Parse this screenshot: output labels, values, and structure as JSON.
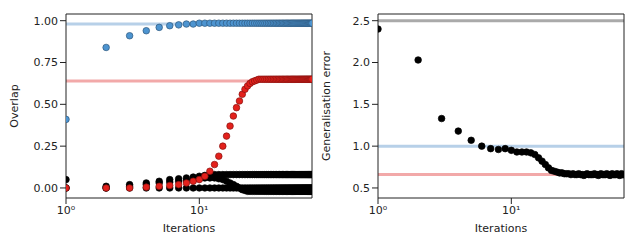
{
  "chart_data": [
    {
      "type": "scatter",
      "x_label": "Iterations",
      "y_label": "Overlap",
      "log": "x",
      "x": [
        1,
        2,
        3,
        4,
        5,
        6,
        7,
        8,
        9,
        10,
        11,
        12,
        13,
        14,
        15,
        16,
        17,
        18,
        19,
        20,
        21,
        22,
        23,
        24,
        25,
        26,
        27,
        28,
        29,
        30,
        31,
        32,
        33,
        34,
        35,
        36,
        37,
        38,
        39,
        40,
        41,
        42,
        43,
        44,
        45,
        46,
        47,
        48,
        49,
        50,
        51,
        52,
        53,
        54,
        55,
        56,
        57,
        58,
        59,
        60,
        61,
        62,
        63,
        64,
        65,
        66,
        67,
        68,
        69,
        70
      ],
      "xlim": [
        1,
        70
      ],
      "xticks": [
        {
          "value": 1,
          "label": "10⁰"
        },
        {
          "value": 10,
          "label": "10¹"
        }
      ],
      "ylim": [
        -0.06,
        1.04
      ],
      "yticks": [
        {
          "value": 0,
          "label": "0.00"
        },
        {
          "value": 0.25,
          "label": "0.25"
        },
        {
          "value": 0.5,
          "label": "0.50"
        },
        {
          "value": 0.75,
          "label": "0.75"
        },
        {
          "value": 1,
          "label": "1.00"
        }
      ],
      "reference_lines": [
        {
          "y": 0.98,
          "color": "#b7d0e8"
        },
        {
          "y": 0.64,
          "color": "#f2a9a9"
        }
      ],
      "series": [
        {
          "color": "#4d94d0",
          "marker": "circle",
          "values": [
            0.41,
            0.84,
            0.91,
            0.94,
            0.96,
            0.97,
            0.975,
            0.98,
            0.98,
            0.985,
            0.985,
            0.985,
            0.985,
            0.985,
            0.985,
            0.985,
            0.985,
            0.985,
            0.985,
            0.985,
            0.985,
            0.985,
            0.985,
            0.985,
            0.985,
            0.985,
            0.985,
            0.985,
            0.985,
            0.985,
            0.985,
            0.985,
            0.985,
            0.985,
            0.985,
            0.985,
            0.985,
            0.985,
            0.985,
            0.985,
            0.985,
            0.985,
            0.985,
            0.985,
            0.985,
            0.985,
            0.985,
            0.985,
            0.985,
            0.985,
            0.985,
            0.985,
            0.985,
            0.985,
            0.985,
            0.985,
            0.985,
            0.985,
            0.985,
            0.985,
            0.985,
            0.985,
            0.985,
            0.985,
            0.985,
            0.985,
            0.985,
            0.985,
            0.985,
            0.985
          ]
        },
        {
          "color": "#000000",
          "marker": "circle",
          "values": [
            0,
            0,
            0,
            0,
            0,
            0,
            0,
            0,
            0,
            0,
            0,
            0,
            0,
            0,
            0,
            0,
            0,
            0,
            0,
            0,
            0,
            0,
            0,
            0,
            0,
            0,
            0,
            0,
            0,
            0,
            0,
            0,
            0,
            0,
            0,
            0,
            0,
            0,
            0,
            0,
            0,
            0,
            0,
            0,
            0,
            0,
            0,
            0,
            0,
            0,
            0,
            0,
            0,
            0,
            0,
            0,
            0,
            0,
            0,
            0,
            0,
            0,
            0,
            0,
            0,
            0,
            0,
            0,
            0,
            0
          ]
        },
        {
          "color": "#000000",
          "marker": "circle",
          "values": [
            0.05,
            0.01,
            0.02,
            0.03,
            0.04,
            0.05,
            0.055,
            0.06,
            0.065,
            0.07,
            0.075,
            0.08,
            0.08,
            0.08,
            0.08,
            0.08,
            0.08,
            0.08,
            0.08,
            0.08,
            0.08,
            0.08,
            0.08,
            0.08,
            0.08,
            0.08,
            0.08,
            0.08,
            0.08,
            0.08,
            0.08,
            0.08,
            0.08,
            0.08,
            0.08,
            0.08,
            0.08,
            0.08,
            0.08,
            0.08,
            0.08,
            0.08,
            0.08,
            0.08,
            0.08,
            0.08,
            0.08,
            0.08,
            0.08,
            0.08,
            0.08,
            0.08,
            0.08,
            0.08,
            0.08,
            0.08,
            0.08,
            0.08,
            0.08,
            0.08,
            0.08,
            0.08,
            0.08,
            0.08,
            0.08,
            0.08,
            0.08,
            0.08,
            0.08,
            0.08
          ]
        },
        {
          "color": "#000000",
          "marker": "circle",
          "values": [
            0,
            0,
            0.01,
            0.02,
            0.03,
            0.035,
            0.04,
            0.045,
            0.05,
            0.055,
            0.06,
            0.06,
            0.06,
            0.055,
            0.05,
            0.04,
            0.03,
            0.02,
            0.01,
            0,
            -0.01,
            -0.015,
            -0.02,
            -0.02,
            -0.02,
            -0.02,
            -0.02,
            -0.02,
            -0.02,
            -0.02,
            -0.02,
            -0.02,
            -0.02,
            -0.02,
            -0.02,
            -0.02,
            -0.02,
            -0.02,
            -0.02,
            -0.02,
            -0.02,
            -0.02,
            -0.02,
            -0.02,
            -0.02,
            -0.02,
            -0.02,
            -0.02,
            -0.02,
            -0.02,
            -0.02,
            -0.02,
            -0.02,
            -0.02,
            -0.02,
            -0.02,
            -0.02,
            -0.02,
            -0.02,
            -0.02,
            -0.02,
            -0.02,
            -0.02,
            -0.02,
            -0.02,
            -0.02,
            -0.02,
            -0.02,
            -0.02,
            -0.02
          ]
        },
        {
          "color": "#e3211c",
          "marker": "circle",
          "values": [
            0,
            0,
            0,
            0.005,
            0.01,
            0.015,
            0.02,
            0.03,
            0.04,
            0.05,
            0.07,
            0.1,
            0.14,
            0.19,
            0.25,
            0.31,
            0.37,
            0.43,
            0.48,
            0.52,
            0.56,
            0.59,
            0.61,
            0.625,
            0.635,
            0.64,
            0.645,
            0.65,
            0.65,
            0.65,
            0.65,
            0.65,
            0.65,
            0.65,
            0.65,
            0.65,
            0.65,
            0.65,
            0.65,
            0.65,
            0.65,
            0.65,
            0.65,
            0.65,
            0.65,
            0.65,
            0.65,
            0.65,
            0.65,
            0.65,
            0.65,
            0.65,
            0.65,
            0.65,
            0.65,
            0.65,
            0.65,
            0.65,
            0.65,
            0.65,
            0.65,
            0.65,
            0.65,
            0.65,
            0.65,
            0.65,
            0.65,
            0.65,
            0.65,
            0.65
          ]
        }
      ]
    },
    {
      "type": "scatter",
      "x_label": "Iterations",
      "y_label": "Generalisation error",
      "log": "x",
      "x": [
        1,
        2,
        3,
        4,
        5,
        6,
        7,
        8,
        9,
        10,
        11,
        12,
        13,
        14,
        15,
        16,
        17,
        18,
        19,
        20,
        21,
        22,
        23,
        24,
        25,
        26,
        27,
        28,
        29,
        30,
        31,
        32,
        33,
        34,
        35,
        36,
        37,
        38,
        39,
        40,
        41,
        42,
        43,
        44,
        45,
        46,
        47,
        48,
        49,
        50,
        51,
        52,
        53,
        54,
        55,
        56,
        57,
        58,
        59,
        60,
        61,
        62,
        63,
        64,
        65,
        66,
        67,
        68,
        69,
        70
      ],
      "xlim": [
        1,
        70
      ],
      "xticks": [
        {
          "value": 1,
          "label": "10⁰"
        },
        {
          "value": 10,
          "label": "10¹"
        }
      ],
      "ylim": [
        0.38,
        2.58
      ],
      "yticks": [
        0.5,
        {
          "value": 1,
          "label": "1.0"
        },
        1.5,
        {
          "value": 2,
          "label": "2.0"
        },
        2.5
      ],
      "reference_lines": [
        {
          "y": 2.5,
          "color": "#aaaaaa"
        },
        {
          "y": 1.0,
          "color": "#b7d0e8"
        },
        {
          "y": 0.66,
          "color": "#f2a9a9"
        }
      ],
      "series": [
        {
          "color": "#000000",
          "marker": "circle",
          "values": [
            2.4,
            2.03,
            1.33,
            1.18,
            1.07,
            1.0,
            0.97,
            0.96,
            0.97,
            0.95,
            0.93,
            0.93,
            0.93,
            0.92,
            0.9,
            0.86,
            0.82,
            0.78,
            0.74,
            0.71,
            0.7,
            0.69,
            0.68,
            0.68,
            0.67,
            0.67,
            0.67,
            0.66,
            0.67,
            0.66,
            0.66,
            0.67,
            0.66,
            0.66,
            0.65,
            0.66,
            0.67,
            0.66,
            0.66,
            0.66,
            0.66,
            0.67,
            0.66,
            0.66,
            0.65,
            0.66,
            0.67,
            0.66,
            0.66,
            0.66,
            0.66,
            0.67,
            0.66,
            0.66,
            0.65,
            0.66,
            0.67,
            0.66,
            0.66,
            0.66,
            0.66,
            0.67,
            0.66,
            0.66,
            0.65,
            0.66,
            0.67,
            0.66,
            0.66,
            0.66
          ]
        }
      ]
    }
  ]
}
